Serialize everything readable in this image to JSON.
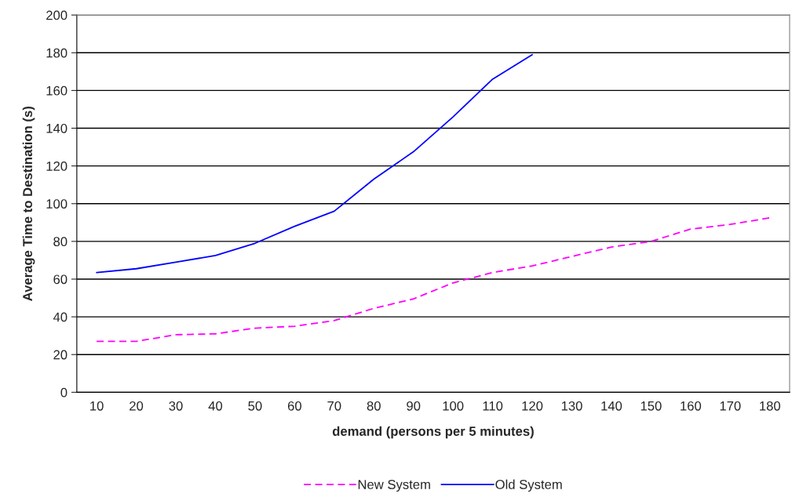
{
  "chart_data": {
    "type": "line",
    "xlabel": "demand (persons per 5 minutes)",
    "ylabel": "Average Time to Destination (s)",
    "categories": [
      "10",
      "20",
      "30",
      "40",
      "50",
      "60",
      "70",
      "80",
      "90",
      "100",
      "110",
      "120",
      "130",
      "140",
      "150",
      "160",
      "170",
      "180"
    ],
    "series": [
      {
        "name": "New System",
        "color": "#ff00ff",
        "line_style": "dashed",
        "values": [
          27,
          27,
          30.5,
          31,
          34,
          35,
          38,
          44.5,
          49.5,
          58,
          63.5,
          67,
          72,
          77,
          80,
          86.5,
          89,
          92.5
        ]
      },
      {
        "name": "Old System",
        "color": "#0000ff",
        "line_style": "solid",
        "values": [
          63.5,
          65.5,
          69,
          72.5,
          79,
          88,
          96,
          113,
          127.5,
          146,
          166,
          179,
          null,
          null,
          null,
          null,
          null,
          null
        ]
      }
    ],
    "ylim": [
      0,
      200
    ],
    "yticks": [
      0,
      20,
      40,
      60,
      80,
      100,
      120,
      140,
      160,
      180,
      200
    ],
    "grid": "y",
    "legend": "bottom",
    "marker": "none"
  }
}
